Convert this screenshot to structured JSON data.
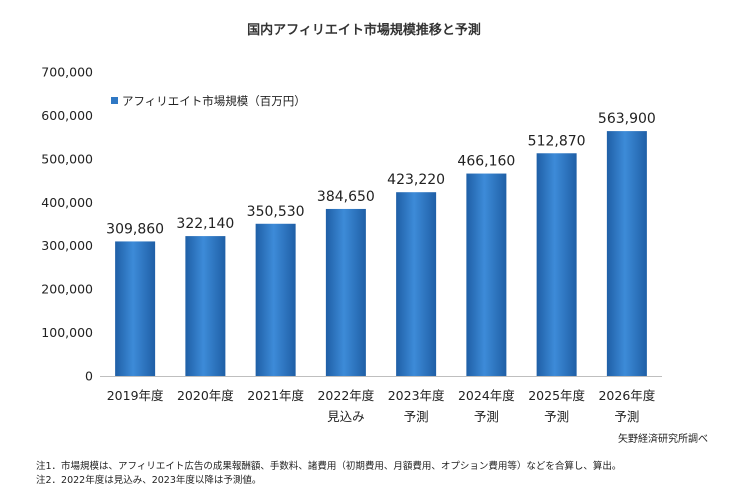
{
  "chart_data": {
    "type": "bar",
    "title": "国内アフィリエイト市場規模推移と予測",
    "categories": [
      "2019年度",
      "2020年度",
      "2021年度",
      "2022年度",
      "2023年度",
      "2024年度",
      "2025年度",
      "2026年度"
    ],
    "category_sublabels": [
      "",
      "",
      "",
      "見込み",
      "予測",
      "予測",
      "予測",
      "予測"
    ],
    "series": [
      {
        "name": "アフィリエイト市場規模（百万円）",
        "values": [
          309860,
          322140,
          350530,
          384650,
          423220,
          466160,
          512870,
          563900
        ],
        "value_labels": [
          "309,860",
          "322,140",
          "350,530",
          "384,650",
          "423,220",
          "466,160",
          "512,870",
          "563,900"
        ],
        "color": "#2f78c4"
      }
    ],
    "ylim": [
      0,
      700000
    ],
    "y_ticks": [
      0,
      100000,
      200000,
      300000,
      400000,
      500000,
      600000,
      700000
    ],
    "y_tick_labels": [
      "0",
      "100,000",
      "200,000",
      "300,000",
      "400,000",
      "500,000",
      "600,000",
      "700,000"
    ],
    "grid": false,
    "legend_position": "top-left"
  },
  "source": "矢野経済研究所調べ",
  "notes": [
    "注1．市場規模は、アフィリエイト広告の成果報酬額、手数料、諸費用（初期費用、月額費用、オプション費用等）などを合算し、算出。",
    "注2．2022年度は見込み、2023年度以降は予測値。"
  ]
}
